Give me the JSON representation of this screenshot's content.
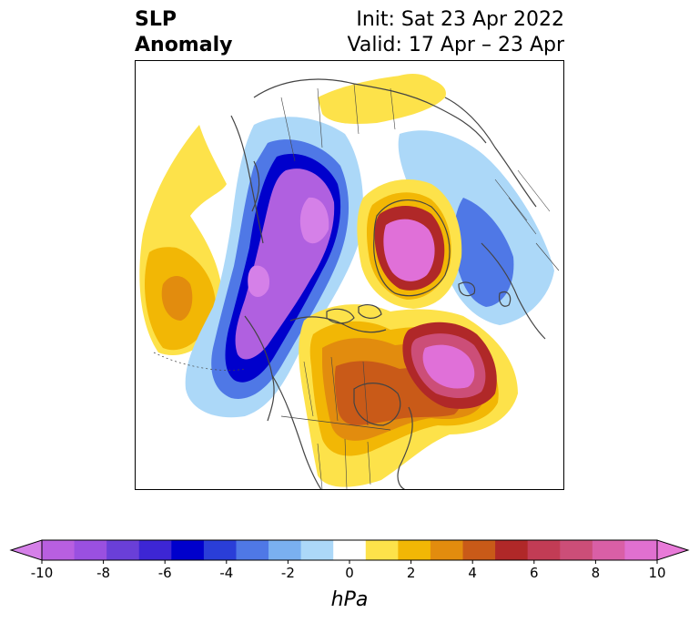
{
  "title": {
    "left_line1": "SLP",
    "left_line2": "Anomaly",
    "right_line1": "Init: Sat 23 Apr 2022",
    "right_line2": "Valid: 17 Apr – 23 Apr"
  },
  "colorbar": {
    "unit": "hPa",
    "ticks": [
      "-10",
      "-8",
      "-6",
      "-4",
      "-2",
      "0",
      "2",
      "4",
      "6",
      "8",
      "10"
    ],
    "low_extend_color": "#d580e8",
    "high_extend_color": "#e87ad8",
    "bins": [
      "#b85fe0",
      "#9a50e0",
      "#6a3fd8",
      "#3d26d4",
      "#0000cc",
      "#2a3ed8",
      "#4f78e6",
      "#7ab0f0",
      "#acd8f8",
      "#ffffff",
      "#fde24a",
      "#f2b705",
      "#e28c0e",
      "#c95a18",
      "#b02828",
      "#c23c55",
      "#cc4e78",
      "#d95fa6",
      "#e070d0"
    ]
  },
  "map": {
    "colors": {
      "purple": "#b060e0",
      "magenta": "#e070d8",
      "darkblue": "#0000cc",
      "blue": "#4f78e6",
      "lightblue": "#acd8f8",
      "yellow": "#fde24a",
      "gold": "#f2b705",
      "orange": "#e28c0e",
      "rust": "#c95a18",
      "red": "#b02828",
      "coast": "#444444"
    }
  }
}
